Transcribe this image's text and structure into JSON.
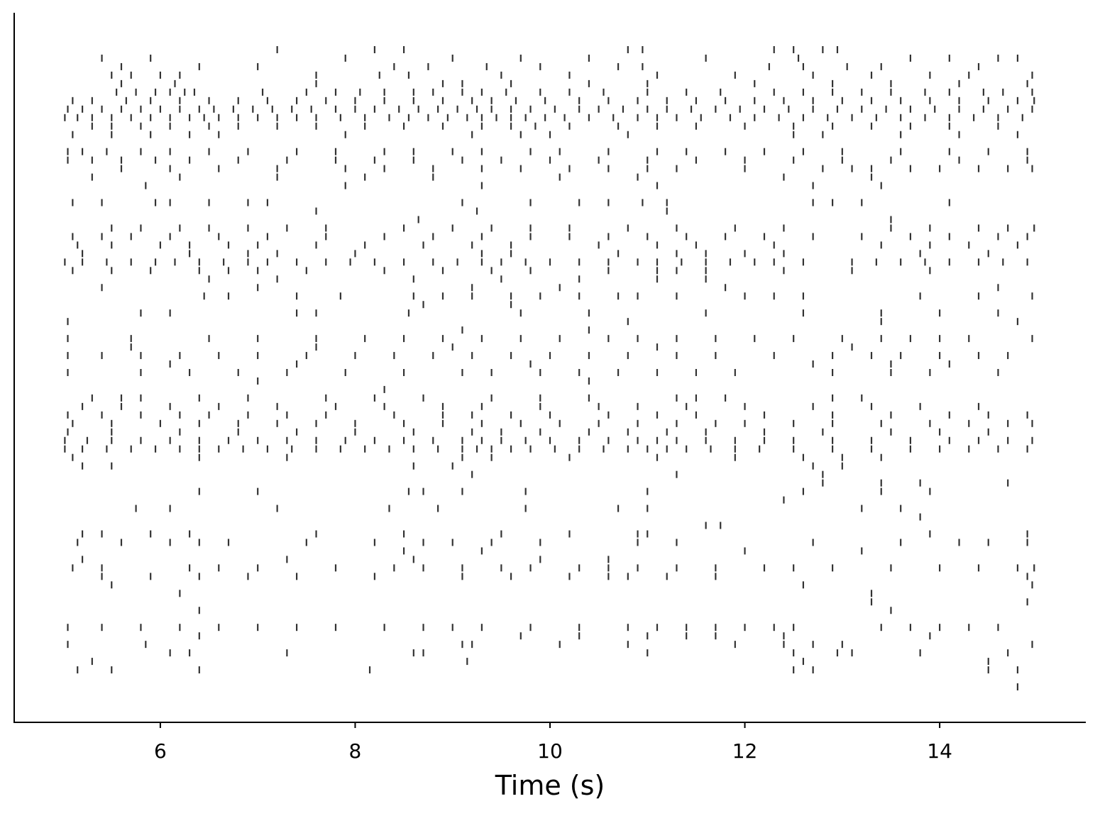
{
  "chart_data": {
    "type": "raster",
    "xlabel": "Time (s)",
    "xlim": [
      4.5,
      15.5
    ],
    "xticks": [
      6,
      8,
      10,
      12,
      14
    ],
    "color": "#333333",
    "trains": [
      [
        7.2,
        8.2,
        8.5,
        10.8,
        10.95,
        12.3,
        12.5,
        12.8,
        12.95
      ],
      [
        5.4,
        5.9,
        7.9,
        9.0,
        9.7,
        10.4,
        11.6,
        12.55,
        13.7,
        14.1,
        14.6,
        14.8
      ],
      [
        5.6,
        6.4,
        7.0,
        8.4,
        8.75,
        9.35,
        9.9,
        10.7,
        10.95,
        12.25,
        12.6,
        13.05,
        13.4,
        14.4
      ],
      [
        5.5,
        5.7,
        6.0,
        6.2,
        7.6,
        8.25,
        8.55,
        9.5,
        10.2,
        11.1,
        11.9,
        12.7,
        13.3,
        13.9,
        14.3,
        14.95
      ],
      [
        5.6,
        6.15,
        7.6,
        8.9,
        9.1,
        9.6,
        10.4,
        11.0,
        12.1,
        12.9,
        13.5,
        14.2,
        14.9
      ],
      [
        5.55,
        5.75,
        5.95,
        6.1,
        6.25,
        6.35,
        7.05,
        7.5,
        7.8,
        8.05,
        8.3,
        8.6,
        8.8,
        9.1,
        9.3,
        9.55,
        9.9,
        10.2,
        10.55,
        11.0,
        11.4,
        11.75,
        12.3,
        12.6,
        12.9,
        13.2,
        13.5,
        13.85,
        14.1,
        14.45,
        14.65,
        14.95
      ],
      [
        5.1,
        5.3,
        5.65,
        5.9,
        6.2,
        6.5,
        6.8,
        7.1,
        7.4,
        7.7,
        8.0,
        8.3,
        8.6,
        8.9,
        9.2,
        9.4,
        9.65,
        9.95,
        10.3,
        10.6,
        10.9,
        11.2,
        11.5,
        11.8,
        12.1,
        12.4,
        12.7,
        13.0,
        13.3,
        13.6,
        13.9,
        14.2,
        14.5,
        14.8,
        14.97
      ],
      [
        5.05,
        5.2,
        5.4,
        5.6,
        5.8,
        6.0,
        6.2,
        6.4,
        6.55,
        6.75,
        6.95,
        7.15,
        7.35,
        7.55,
        7.8,
        8.0,
        8.2,
        8.45,
        8.65,
        8.85,
        9.05,
        9.25,
        9.4,
        9.6,
        9.8,
        10.05,
        10.3,
        10.5,
        10.75,
        11.0,
        11.2,
        11.45,
        11.7,
        11.95,
        12.2,
        12.45,
        12.7,
        12.95,
        13.2,
        13.45,
        13.7,
        13.95,
        14.2,
        14.45,
        14.7,
        14.95
      ],
      [
        5.02,
        5.15,
        5.3,
        5.5,
        5.7,
        5.9,
        6.1,
        6.3,
        6.45,
        6.6,
        6.8,
        7.0,
        7.2,
        7.4,
        7.6,
        7.85,
        8.1,
        8.35,
        8.55,
        8.75,
        8.95,
        9.15,
        9.3,
        9.45,
        9.6,
        9.75,
        9.95,
        10.15,
        10.4,
        10.65,
        10.9,
        11.1,
        11.3,
        11.55,
        11.85,
        12.1,
        12.35,
        12.6,
        12.85,
        13.1,
        13.35,
        13.6,
        13.85,
        14.1,
        14.35,
        14.6,
        14.85
      ],
      [
        5.3,
        5.5,
        5.8,
        6.1,
        6.5,
        6.8,
        7.2,
        7.6,
        8.1,
        8.5,
        8.9,
        9.3,
        9.6,
        9.85,
        10.2,
        10.7,
        11.1,
        11.5,
        12.0,
        12.5,
        12.9,
        13.3,
        13.7,
        14.1,
        14.6
      ],
      [
        5.1,
        5.5,
        5.9,
        6.3,
        6.6,
        7.9,
        9.2,
        9.7,
        10.0,
        10.8,
        12.5,
        12.8,
        13.6,
        14.2,
        14.8
      ],
      [],
      [
        5.05,
        5.2,
        5.45,
        5.8,
        6.1,
        6.5,
        6.9,
        7.4,
        7.8,
        8.3,
        8.6,
        9.0,
        9.3,
        9.8,
        10.1,
        10.6,
        11.1,
        11.4,
        11.8,
        12.2,
        12.6,
        13.0,
        13.6,
        14.1,
        14.5,
        14.9
      ],
      [
        5.05,
        5.3,
        5.6,
        5.95,
        6.3,
        6.8,
        7.3,
        7.8,
        8.2,
        8.6,
        9.1,
        9.5,
        10.0,
        10.5,
        11.0,
        11.5,
        12.0,
        12.5,
        13.0,
        13.5,
        14.2,
        14.9
      ],
      [
        5.6,
        6.1,
        6.6,
        7.2,
        7.9,
        8.3,
        8.8,
        9.3,
        9.7,
        10.2,
        10.6,
        11.0,
        11.3,
        12.0,
        12.8,
        13.1,
        13.3,
        13.7,
        14.0,
        14.4,
        14.7,
        14.95
      ],
      [
        5.3,
        6.2,
        7.2,
        8.1,
        8.8,
        10.1,
        10.9,
        12.4,
        13.3
      ],
      [
        5.85,
        7.9,
        9.3,
        11.1,
        12.7,
        13.4
      ],
      [],
      [
        5.1,
        5.4,
        5.95,
        6.1,
        6.5,
        6.9,
        7.1,
        9.1,
        9.8,
        10.3,
        10.6,
        10.95,
        11.2,
        12.7,
        12.9,
        13.2,
        14.1
      ],
      [
        7.6,
        9.25,
        11.2
      ],
      [
        8.65,
        13.5
      ],
      [
        5.5,
        5.8,
        6.2,
        6.5,
        6.9,
        7.3,
        7.7,
        8.5,
        9.0,
        9.4,
        9.8,
        10.2,
        10.8,
        11.3,
        11.9,
        12.4,
        13.5,
        13.9,
        14.4,
        14.7,
        14.97
      ],
      [
        5.1,
        5.4,
        5.7,
        6.1,
        6.6,
        7.1,
        7.7,
        8.3,
        8.8,
        9.3,
        9.8,
        10.2,
        10.6,
        11.0,
        11.4,
        11.8,
        12.2,
        12.7,
        13.2,
        13.7,
        14.1,
        14.6,
        14.9
      ],
      [
        5.15,
        5.5,
        6.0,
        6.3,
        6.7,
        7.0,
        7.6,
        8.1,
        8.7,
        9.2,
        9.6,
        10.5,
        11.1,
        11.5,
        12.3,
        13.4,
        13.9,
        14.3,
        14.8
      ],
      [
        5.2,
        6.3,
        6.9,
        7.2,
        8.0,
        9.3,
        9.6,
        10.7,
        11.3,
        11.6,
        12.0,
        12.4,
        13.8,
        14.5
      ],
      [
        5.02,
        5.2,
        5.45,
        5.7,
        5.95,
        6.15,
        6.4,
        6.65,
        6.9,
        7.1,
        7.4,
        7.7,
        7.95,
        8.2,
        8.5,
        8.8,
        9.05,
        9.3,
        9.5,
        9.75,
        10.0,
        10.3,
        10.6,
        10.9,
        11.1,
        11.35,
        11.6,
        11.85,
        12.1,
        12.3,
        12.6,
        13.1,
        13.35,
        13.6,
        13.85,
        14.1,
        14.4,
        14.65,
        14.9
      ],
      [
        5.1,
        5.5,
        5.9,
        6.4,
        6.7,
        7.0,
        7.5,
        8.3,
        8.9,
        9.4,
        9.8,
        10.6,
        11.1,
        11.3,
        11.6,
        12.4,
        13.1,
        13.9
      ],
      [
        6.5,
        7.2,
        8.6,
        9.5,
        10.3,
        11.1,
        11.6
      ],
      [
        5.4,
        7.0,
        9.2,
        10.1,
        11.8,
        14.6
      ],
      [
        6.45,
        6.7,
        7.4,
        7.85,
        8.6,
        8.9,
        9.2,
        9.6,
        9.9,
        10.3,
        10.7,
        10.9,
        11.3,
        12.0,
        12.3,
        12.6,
        13.8,
        14.4,
        14.95
      ],
      [
        8.7,
        9.6
      ],
      [
        5.8,
        6.1,
        7.4,
        7.6,
        8.55,
        9.7,
        10.4,
        11.6,
        12.6,
        13.4,
        14.0,
        14.6
      ],
      [
        5.05,
        10.8,
        13.4,
        14.8
      ],
      [
        9.1,
        10.4
      ],
      [
        5.05,
        5.7,
        6.5,
        7.0,
        7.6,
        8.1,
        8.5,
        8.9,
        9.3,
        9.7,
        10.1,
        10.6,
        10.9,
        11.3,
        11.7,
        12.1,
        12.5,
        13.0,
        13.4,
        13.7,
        14.0,
        14.3,
        14.95
      ],
      [
        5.7,
        7.6,
        9.0,
        11.1,
        13.1
      ],
      [
        5.05,
        5.4,
        5.8,
        6.2,
        6.6,
        7.0,
        7.5,
        8.0,
        8.4,
        8.8,
        9.2,
        9.6,
        10.0,
        10.4,
        10.8,
        11.3,
        11.7,
        12.3,
        12.9,
        13.3,
        13.6,
        14.0,
        14.4,
        14.7
      ],
      [
        6.1,
        7.4,
        9.8,
        12.7,
        13.5,
        14.1
      ],
      [
        5.05,
        5.8,
        6.3,
        6.8,
        7.3,
        7.9,
        8.5,
        9.1,
        9.4,
        9.9,
        10.3,
        10.7,
        11.1,
        11.5,
        11.9,
        12.9,
        13.5,
        13.9,
        14.6
      ],
      [
        7.0,
        10.4
      ],
      [
        8.3
      ],
      [
        5.3,
        5.6,
        5.8,
        6.4,
        6.9,
        7.7,
        8.2,
        8.7,
        9.4,
        9.9,
        10.4,
        11.3,
        11.5,
        11.8,
        12.9,
        13.2
      ],
      [
        5.2,
        5.6,
        6.1,
        6.6,
        7.2,
        7.8,
        8.3,
        8.9,
        9.3,
        9.9,
        10.5,
        10.9,
        11.4,
        12.0,
        12.7,
        13.3,
        13.8,
        14.4
      ],
      [
        5.05,
        5.4,
        5.8,
        6.2,
        6.5,
        6.9,
        7.3,
        7.7,
        8.4,
        8.9,
        9.2,
        9.6,
        10.0,
        10.6,
        11.1,
        11.5,
        12.2,
        12.9,
        13.5,
        14.1,
        14.5,
        14.9
      ],
      [
        5.1,
        5.5,
        6.0,
        6.4,
        6.8,
        7.2,
        7.6,
        8.0,
        8.5,
        8.9,
        9.3,
        9.7,
        10.1,
        10.5,
        10.9,
        11.3,
        11.7,
        12.0,
        12.5,
        12.9,
        13.4,
        13.9,
        14.3,
        14.7,
        14.95
      ],
      [
        5.05,
        5.5,
        6.2,
        6.8,
        7.4,
        8.0,
        8.6,
        9.2,
        9.5,
        9.9,
        10.4,
        10.8,
        11.2,
        11.6,
        12.2,
        12.8,
        13.5,
        14.0,
        14.5
      ],
      [
        5.02,
        5.25,
        5.5,
        5.8,
        6.1,
        6.4,
        6.7,
        7.0,
        7.3,
        7.6,
        7.9,
        8.2,
        8.5,
        8.8,
        9.1,
        9.3,
        9.5,
        9.75,
        10.0,
        10.3,
        10.6,
        10.9,
        11.1,
        11.3,
        11.6,
        11.9,
        12.2,
        12.5,
        12.9,
        13.3,
        13.7,
        14.1,
        14.4,
        14.7,
        14.95
      ],
      [
        5.02,
        5.2,
        5.45,
        5.7,
        5.95,
        6.2,
        6.4,
        6.6,
        6.85,
        7.1,
        7.35,
        7.6,
        7.85,
        8.1,
        8.35,
        8.6,
        8.85,
        9.1,
        9.25,
        9.4,
        9.6,
        9.8,
        10.05,
        10.3,
        10.55,
        10.8,
        11.0,
        11.2,
        11.4,
        11.65,
        11.9,
        12.15,
        12.5,
        12.9,
        13.3,
        13.7,
        14.0,
        14.3,
        14.6,
        14.9
      ],
      [
        5.1,
        6.4,
        7.3,
        9.1,
        9.4,
        10.2,
        11.1,
        11.9,
        12.6,
        13.0,
        13.4
      ],
      [
        5.2,
        5.5,
        8.6,
        9.0,
        12.7,
        13.0
      ],
      [
        9.2,
        11.3,
        12.8
      ],
      [
        12.8,
        13.4,
        13.8,
        14.7
      ],
      [
        6.4,
        7.0,
        8.7,
        8.55,
        9.1,
        9.75,
        11.0,
        12.6,
        13.4,
        13.9
      ],
      [
        12.4
      ],
      [
        5.75,
        6.1,
        7.2,
        8.35,
        8.85,
        9.75,
        10.7,
        11.0,
        13.2,
        13.6
      ],
      [
        13.8
      ],
      [
        11.6,
        11.75
      ],
      [
        5.2,
        5.4,
        5.9,
        6.3,
        7.6,
        8.5,
        9.5,
        10.2,
        10.9,
        11.0,
        13.9,
        14.9
      ],
      [
        5.15,
        5.6,
        6.1,
        6.4,
        6.7,
        7.5,
        8.2,
        8.7,
        9.0,
        9.4,
        9.9,
        10.9,
        11.3,
        12.7,
        13.6,
        14.2,
        14.5,
        14.9
      ],
      [
        8.5,
        9.3,
        12.0,
        13.2
      ],
      [
        5.2,
        7.3,
        8.6,
        9.9,
        10.6
      ],
      [
        5.1,
        5.4,
        6.3,
        6.6,
        7.0,
        7.8,
        8.4,
        8.7,
        9.1,
        9.5,
        9.8,
        10.3,
        10.6,
        10.9,
        11.3,
        11.7,
        12.2,
        12.5,
        12.9,
        13.5,
        14.0,
        14.4,
        14.8,
        14.97
      ],
      [
        5.4,
        5.9,
        6.4,
        6.9,
        7.4,
        8.2,
        9.1,
        9.6,
        10.2,
        10.6,
        10.8,
        11.2,
        11.7,
        14.9
      ],
      [
        5.5,
        12.6,
        14.95
      ],
      [
        6.2,
        13.3
      ],
      [
        13.3,
        14.9
      ],
      [
        6.4,
        13.5
      ],
      [],
      [
        5.05,
        5.4,
        5.8,
        6.2,
        6.6,
        7.0,
        7.4,
        7.8,
        8.3,
        8.7,
        9.0,
        9.3,
        9.8,
        10.3,
        10.8,
        11.1,
        11.4,
        11.7,
        12.0,
        12.3,
        12.5,
        13.4,
        13.7,
        14.0,
        14.3,
        14.6
      ],
      [
        6.4,
        9.7,
        10.3,
        11.0,
        11.4,
        11.7,
        12.4,
        13.9
      ],
      [
        5.05,
        5.85,
        9.1,
        9.2,
        10.1,
        10.8,
        11.9,
        12.4,
        12.7,
        13.0,
        14.95
      ],
      [
        6.1,
        6.3,
        7.3,
        8.6,
        8.7,
        11.0,
        12.5,
        12.95,
        13.1,
        13.8,
        14.7
      ],
      [
        5.3,
        9.15,
        12.6,
        14.5
      ],
      [
        5.15,
        5.5,
        6.4,
        8.15,
        12.5,
        12.7,
        14.5,
        14.8
      ],
      [],
      [
        14.8
      ]
    ]
  }
}
